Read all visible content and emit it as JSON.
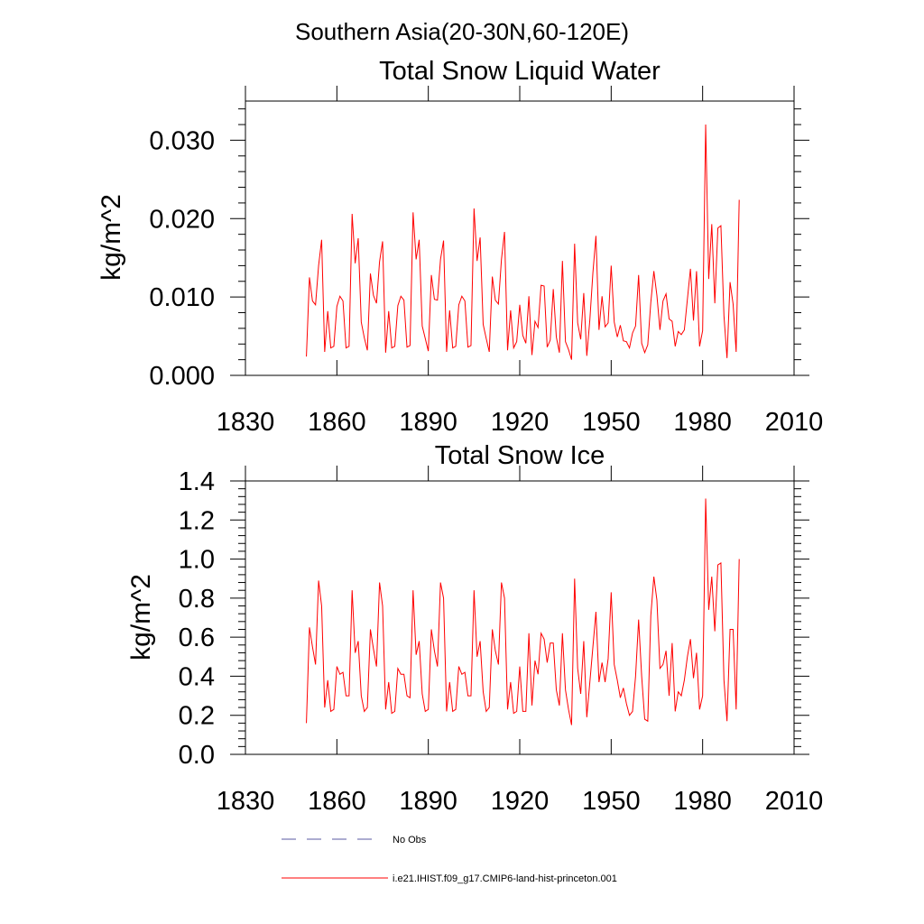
{
  "header": {
    "region_title": "Southern Asia(20-30N,60-120E)"
  },
  "colors": {
    "model_line": "#ff0000",
    "obs_line": "#5a5aa0",
    "axis": "#000000"
  },
  "legend": {
    "entries": [
      {
        "label": "No Obs",
        "style": "dashed",
        "color": "#5a5aa0"
      },
      {
        "label": "i.e21.IHIST.f09_g17.CMIP6-land-hist-princeton.001",
        "style": "solid",
        "color": "#ff0000"
      }
    ]
  },
  "chart_data": [
    {
      "type": "line",
      "title": "Total Snow Liquid Water",
      "xlabel": "",
      "ylabel": "kg/m^2",
      "xlim": [
        1830,
        2010
      ],
      "ylim": [
        0.0,
        0.035
      ],
      "xticks": [
        1830,
        1860,
        1890,
        1920,
        1950,
        1980,
        2010
      ],
      "yticks": [
        0.0,
        0.01,
        0.02,
        0.03
      ],
      "ytick_labels": [
        "0.000",
        "0.010",
        "0.020",
        "0.030"
      ],
      "grid": false,
      "series": [
        {
          "name": "i.e21.IHIST.f09_g17.CMIP6-land-hist-princeton.001",
          "x_start": 1850,
          "x_step": 1,
          "values": [
            0.0024,
            0.0125,
            0.0095,
            0.009,
            0.014,
            0.0173,
            0.003,
            0.0082,
            0.0035,
            0.0037,
            0.0088,
            0.0101,
            0.0095,
            0.0035,
            0.0037,
            0.0206,
            0.0143,
            0.0175,
            0.0068,
            0.0048,
            0.0032,
            0.013,
            0.0102,
            0.0092,
            0.0145,
            0.0171,
            0.0029,
            0.0082,
            0.0035,
            0.0037,
            0.0089,
            0.0101,
            0.0096,
            0.0036,
            0.0038,
            0.0208,
            0.0148,
            0.0173,
            0.0063,
            0.0047,
            0.0031,
            0.0128,
            0.0097,
            0.0096,
            0.0148,
            0.0172,
            0.003,
            0.0083,
            0.0035,
            0.0037,
            0.009,
            0.0101,
            0.0095,
            0.0036,
            0.0038,
            0.0213,
            0.0146,
            0.0176,
            0.0065,
            0.0047,
            0.003,
            0.0126,
            0.0096,
            0.0091,
            0.0148,
            0.0183,
            0.0032,
            0.0083,
            0.0035,
            0.0043,
            0.009,
            0.0051,
            0.0041,
            0.0101,
            0.0026,
            0.0069,
            0.0061,
            0.0115,
            0.0114,
            0.0036,
            0.0045,
            0.011,
            0.0049,
            0.0029,
            0.0146,
            0.0043,
            0.0033,
            0.002,
            0.0168,
            0.0067,
            0.0046,
            0.0105,
            0.0025,
            0.0071,
            0.0131,
            0.0178,
            0.0058,
            0.0101,
            0.0062,
            0.0067,
            0.014,
            0.0068,
            0.0049,
            0.0064,
            0.0044,
            0.0043,
            0.0035,
            0.0054,
            0.0063,
            0.0128,
            0.0041,
            0.0029,
            0.0039,
            0.0093,
            0.0133,
            0.0102,
            0.0058,
            0.0095,
            0.0104,
            0.0072,
            0.0069,
            0.0037,
            0.0056,
            0.0052,
            0.0058,
            0.0097,
            0.0136,
            0.007,
            0.0133,
            0.0037,
            0.0057,
            0.032,
            0.0123,
            0.0193,
            0.0092,
            0.0188,
            0.0191,
            0.0076,
            0.0022,
            0.0119,
            0.0091,
            0.003,
            0.0224
          ]
        }
      ]
    },
    {
      "type": "line",
      "title": "Total Snow Ice",
      "xlabel": "",
      "ylabel": "kg/m^2",
      "xlim": [
        1830,
        2010
      ],
      "ylim": [
        0.0,
        1.4
      ],
      "xticks": [
        1830,
        1860,
        1890,
        1920,
        1950,
        1980,
        2010
      ],
      "yticks": [
        0.0,
        0.2,
        0.4,
        0.6,
        0.8,
        1.0,
        1.2,
        1.4
      ],
      "ytick_labels": [
        "0.0",
        "0.2",
        "0.4",
        "0.6",
        "0.8",
        "1.0",
        "1.2",
        "1.4"
      ],
      "grid": false,
      "series": [
        {
          "name": "i.e21.IHIST.f09_g17.CMIP6-land-hist-princeton.001",
          "x_start": 1850,
          "x_step": 1,
          "values": [
            0.16,
            0.65,
            0.55,
            0.46,
            0.89,
            0.76,
            0.24,
            0.38,
            0.22,
            0.23,
            0.45,
            0.41,
            0.42,
            0.3,
            0.3,
            0.84,
            0.52,
            0.58,
            0.3,
            0.22,
            0.24,
            0.64,
            0.54,
            0.45,
            0.88,
            0.76,
            0.23,
            0.37,
            0.21,
            0.22,
            0.44,
            0.41,
            0.41,
            0.3,
            0.29,
            0.84,
            0.51,
            0.58,
            0.31,
            0.22,
            0.23,
            0.64,
            0.53,
            0.45,
            0.88,
            0.8,
            0.22,
            0.37,
            0.22,
            0.23,
            0.45,
            0.41,
            0.42,
            0.3,
            0.3,
            0.84,
            0.5,
            0.58,
            0.32,
            0.22,
            0.24,
            0.64,
            0.53,
            0.46,
            0.88,
            0.8,
            0.23,
            0.37,
            0.21,
            0.22,
            0.45,
            0.22,
            0.22,
            0.62,
            0.25,
            0.48,
            0.41,
            0.62,
            0.59,
            0.47,
            0.57,
            0.57,
            0.33,
            0.25,
            0.62,
            0.33,
            0.23,
            0.15,
            0.9,
            0.44,
            0.31,
            0.58,
            0.19,
            0.37,
            0.55,
            0.73,
            0.37,
            0.47,
            0.37,
            0.49,
            0.83,
            0.46,
            0.38,
            0.29,
            0.34,
            0.26,
            0.2,
            0.22,
            0.4,
            0.69,
            0.4,
            0.18,
            0.17,
            0.71,
            0.91,
            0.79,
            0.44,
            0.46,
            0.53,
            0.3,
            0.57,
            0.22,
            0.32,
            0.3,
            0.38,
            0.5,
            0.59,
            0.39,
            0.52,
            0.23,
            0.3,
            1.31,
            0.74,
            0.91,
            0.63,
            0.97,
            0.98,
            0.38,
            0.17,
            0.64,
            0.64,
            0.23,
            1.0
          ]
        }
      ]
    }
  ]
}
